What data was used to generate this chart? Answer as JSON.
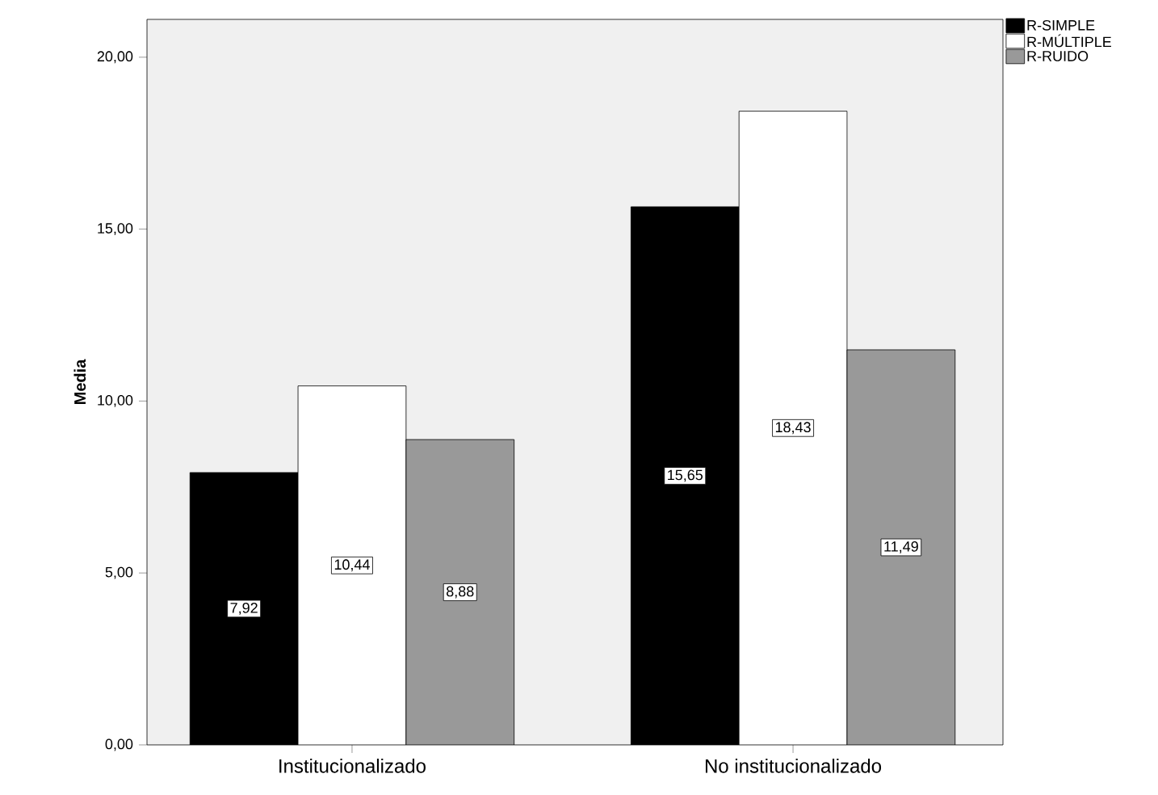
{
  "chart_data": {
    "type": "bar",
    "ylabel": "Media",
    "categories": [
      "Institucionalizado",
      "No institucionalizado"
    ],
    "series": [
      {
        "name": "R-SIMPLE",
        "color": "#000000",
        "values": [
          7.92,
          15.65
        ],
        "value_labels": [
          "7,92",
          "15,65"
        ]
      },
      {
        "name": "R-MÚLTIPLE",
        "color": "#ffffff",
        "values": [
          10.44,
          18.43
        ],
        "value_labels": [
          "10,44",
          "18,43"
        ]
      },
      {
        "name": "R-RUIDO",
        "color": "#999999",
        "values": [
          8.88,
          11.49
        ],
        "value_labels": [
          "8,88",
          "11,49"
        ]
      }
    ],
    "ylim": [
      0,
      21.1
    ],
    "yticks": [
      {
        "value": 0,
        "label": "0,00"
      },
      {
        "value": 5,
        "label": "5,00"
      },
      {
        "value": 10,
        "label": "10,00"
      },
      {
        "value": 15,
        "label": "15,00"
      },
      {
        "value": 20,
        "label": "20,00"
      }
    ],
    "grid": false,
    "legend": "top right"
  }
}
